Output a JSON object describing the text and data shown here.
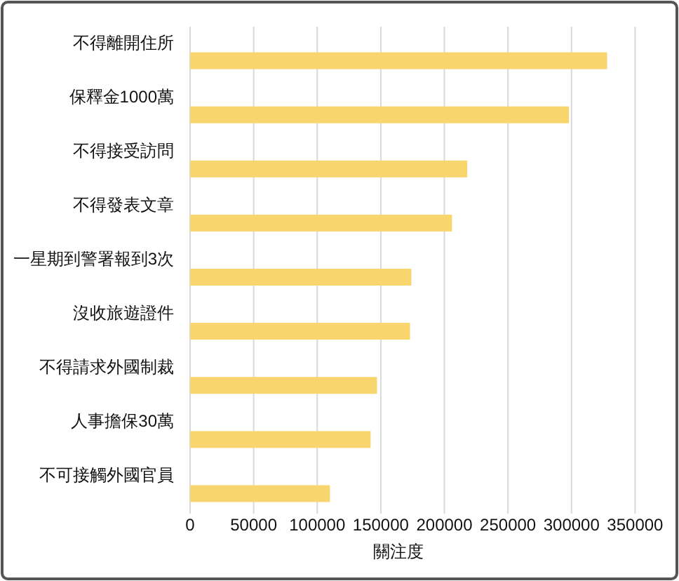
{
  "chart_data": {
    "type": "bar",
    "orientation": "horizontal",
    "categories": [
      "不得離開住所",
      "保釋金1000萬",
      "不得接受訪問",
      "不得發表文章",
      "一星期到警署報到3次",
      "沒收旅遊證件",
      "不得請求外國制裁",
      "人事擔保30萬",
      "不可接觸外國官員"
    ],
    "values": [
      328000,
      298000,
      218000,
      206000,
      174000,
      173000,
      147000,
      142000,
      110000
    ],
    "color": "#f9d56e",
    "xlabel": "關注度",
    "xlim": [
      0,
      350000
    ],
    "xticks": [
      0,
      50000,
      100000,
      150000,
      200000,
      250000,
      300000,
      350000
    ],
    "grid": "x"
  }
}
